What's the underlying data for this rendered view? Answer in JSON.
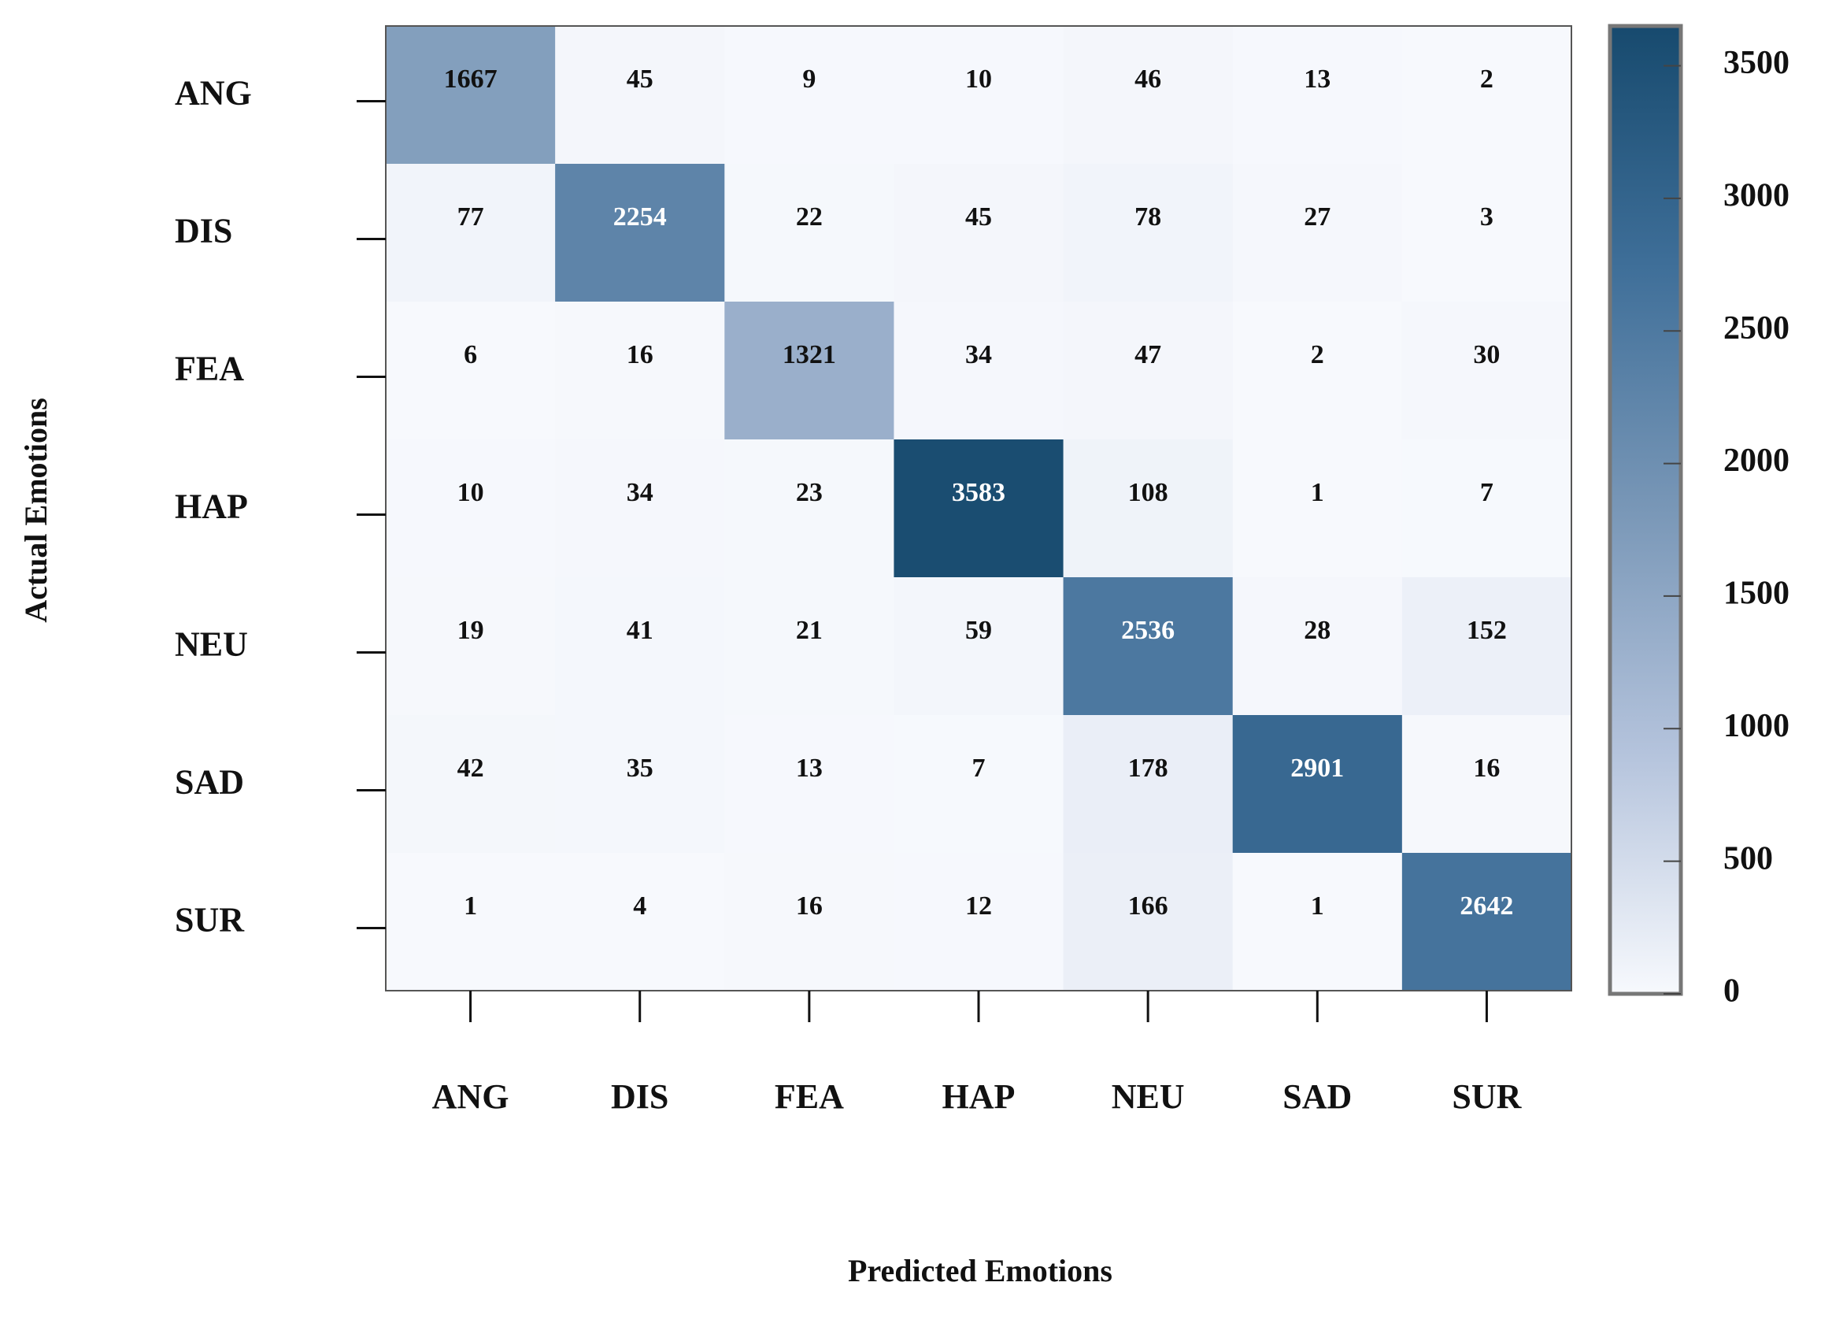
{
  "chart_data": {
    "type": "heatmap",
    "x_label": "Predicted Emotions",
    "y_label": "Actual Emotions",
    "x_categories": [
      "ANG",
      "DIS",
      "FEA",
      "HAP",
      "NEU",
      "SAD",
      "SUR"
    ],
    "y_categories": [
      "ANG",
      "DIS",
      "FEA",
      "HAP",
      "NEU",
      "SAD",
      "SUR"
    ],
    "values": [
      [
        1667,
        45,
        9,
        10,
        46,
        13,
        2
      ],
      [
        77,
        2254,
        22,
        45,
        78,
        27,
        3
      ],
      [
        6,
        16,
        1321,
        34,
        47,
        2,
        30
      ],
      [
        10,
        34,
        23,
        3583,
        108,
        1,
        7
      ],
      [
        19,
        41,
        21,
        59,
        2536,
        28,
        152
      ],
      [
        42,
        35,
        13,
        7,
        178,
        2901,
        16
      ],
      [
        1,
        4,
        16,
        12,
        166,
        1,
        2642
      ]
    ],
    "zlim": [
      0,
      3650
    ],
    "zticks": [
      0,
      500,
      1000,
      1500,
      2000,
      2500,
      3000,
      3500
    ],
    "colormap": [
      "#f7f9fd",
      "#b4c3dc",
      "#7997b7",
      "#3f6f99",
      "#174a6e"
    ]
  }
}
